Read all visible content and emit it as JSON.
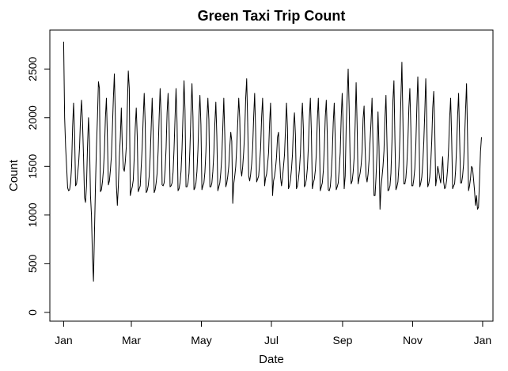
{
  "chart_data": {
    "type": "line",
    "title": "Green Taxi Trip Count",
    "xlabel": "Date",
    "ylabel": "Count",
    "x_start": "2015-01-01",
    "x_end": "2015-12-31",
    "xlim": [
      "2014-12-20",
      "2016-01-10"
    ],
    "ylim": [
      -90,
      2900
    ],
    "x_ticks": [
      {
        "label": "Jan",
        "date": "2015-01-01"
      },
      {
        "label": "Mar",
        "date": "2015-03-01"
      },
      {
        "label": "May",
        "date": "2015-05-01"
      },
      {
        "label": "Jul",
        "date": "2015-07-01"
      },
      {
        "label": "Sep",
        "date": "2015-09-01"
      },
      {
        "label": "Nov",
        "date": "2015-11-01"
      },
      {
        "label": "Jan",
        "date": "2016-01-01"
      }
    ],
    "y_ticks": [
      0,
      500,
      1000,
      1500,
      2000,
      2500
    ],
    "grid": false,
    "legend": "none",
    "line_color": "#000000",
    "series": [
      {
        "values": [
          2780,
          2000,
          1700,
          1500,
          1280,
          1250,
          1260,
          1330,
          1500,
          1900,
          2150,
          1850,
          1300,
          1320,
          1420,
          1520,
          1700,
          2000,
          2180,
          1950,
          1600,
          1180,
          1130,
          1300,
          1700,
          2000,
          1750,
          1200,
          1000,
          560,
          320,
          820,
          1300,
          1700,
          2000,
          2370,
          2300,
          1240,
          1260,
          1340,
          1460,
          1660,
          2000,
          2200,
          1800,
          1310,
          1350,
          1460,
          1600,
          1890,
          2200,
          2450,
          2000,
          1310,
          1100,
          1300,
          1600,
          1800,
          2100,
          1700,
          1480,
          1450,
          1550,
          1700,
          2100,
          2480,
          2300,
          1200,
          1250,
          1290,
          1360,
          1600,
          1900,
          2100,
          1810,
          1240,
          1270,
          1300,
          1500,
          1700,
          2000,
          2250,
          1940,
          1230,
          1250,
          1300,
          1400,
          1600,
          1900,
          2200,
          1850,
          1230,
          1260,
          1330,
          1430,
          1660,
          2000,
          2300,
          2020,
          1310,
          1300,
          1330,
          1460,
          1690,
          2050,
          2250,
          1940,
          1290,
          1300,
          1330,
          1440,
          1680,
          2000,
          2300,
          1950,
          1250,
          1270,
          1330,
          1450,
          1680,
          2030,
          2380,
          2080,
          1290,
          1290,
          1330,
          1430,
          1700,
          2050,
          2350,
          2010,
          1260,
          1280,
          1330,
          1450,
          1670,
          2010,
          2230,
          1930,
          1260,
          1300,
          1330,
          1440,
          1650,
          1980,
          2200,
          1980,
          1290,
          1290,
          1330,
          1450,
          1640,
          1940,
          2160,
          1810,
          1250,
          1290,
          1330,
          1440,
          1600,
          1900,
          2200,
          1820,
          1290,
          1330,
          1400,
          1500,
          1700,
          1850,
          1760,
          1120,
          1320,
          1400,
          1500,
          1700,
          1950,
          2200,
          2000,
          1480,
          1400,
          1500,
          1650,
          1850,
          2200,
          2400,
          1950,
          1400,
          1350,
          1420,
          1530,
          1690,
          2000,
          2250,
          1860,
          1340,
          1370,
          1400,
          1530,
          1690,
          2000,
          2200,
          1850,
          1300,
          1380,
          1420,
          1520,
          1640,
          1940,
          2150,
          1700,
          1200,
          1350,
          1400,
          1480,
          1600,
          1800,
          1850,
          1620,
          1390,
          1300,
          1380,
          1500,
          1620,
          1880,
          2150,
          1890,
          1270,
          1300,
          1360,
          1470,
          1620,
          1900,
          2050,
          1820,
          1270,
          1300,
          1370,
          1470,
          1630,
          1950,
          2150,
          1880,
          1290,
          1310,
          1370,
          1480,
          1700,
          2000,
          2200,
          1860,
          1270,
          1330,
          1370,
          1460,
          1630,
          1980,
          2200,
          1860,
          1250,
          1290,
          1330,
          1450,
          1680,
          2010,
          2180,
          1830,
          1260,
          1250,
          1290,
          1420,
          1630,
          1950,
          2150,
          1780,
          1260,
          1290,
          1330,
          1470,
          1640,
          2000,
          2250,
          1900,
          1270,
          1400,
          1900,
          2200,
          2500,
          2100,
          1550,
          1320,
          1350,
          1440,
          1590,
          1920,
          2360,
          1930,
          1320,
          1380,
          1430,
          1510,
          1650,
          1990,
          2120,
          1700,
          1400,
          1340,
          1420,
          1560,
          1760,
          1960,
          2200,
          1700,
          1200,
          1200,
          1390,
          1640,
          2060,
          1700,
          1060,
          1280,
          1390,
          1500,
          1660,
          2000,
          2230,
          1750,
          1250,
          1260,
          1300,
          1430,
          1750,
          2180,
          2380,
          1780,
          1260,
          1290,
          1340,
          1500,
          1800,
          2200,
          2570,
          2000,
          1320,
          1320,
          1380,
          1520,
          1750,
          2100,
          2300,
          1900,
          1300,
          1300,
          1370,
          1480,
          1720,
          2100,
          2420,
          2050,
          1290,
          1330,
          1390,
          1530,
          1750,
          2050,
          2400,
          2000,
          1290,
          1320,
          1390,
          1530,
          1760,
          2100,
          2270,
          1900,
          1300,
          1380,
          1500,
          1450,
          1380,
          1330,
          1450,
          1600,
          1340,
          1270,
          1290,
          1360,
          1480,
          1700,
          2000,
          2200,
          1800,
          1270,
          1300,
          1320,
          1460,
          1700,
          2020,
          2250,
          1800,
          1330,
          1330,
          1400,
          1520,
          1780,
          2080,
          2350,
          1800,
          1250,
          1300,
          1380,
          1500,
          1480,
          1370,
          1250,
          1100,
          1200,
          1060,
          1080,
          1350,
          1650,
          1800
        ]
      }
    ]
  }
}
